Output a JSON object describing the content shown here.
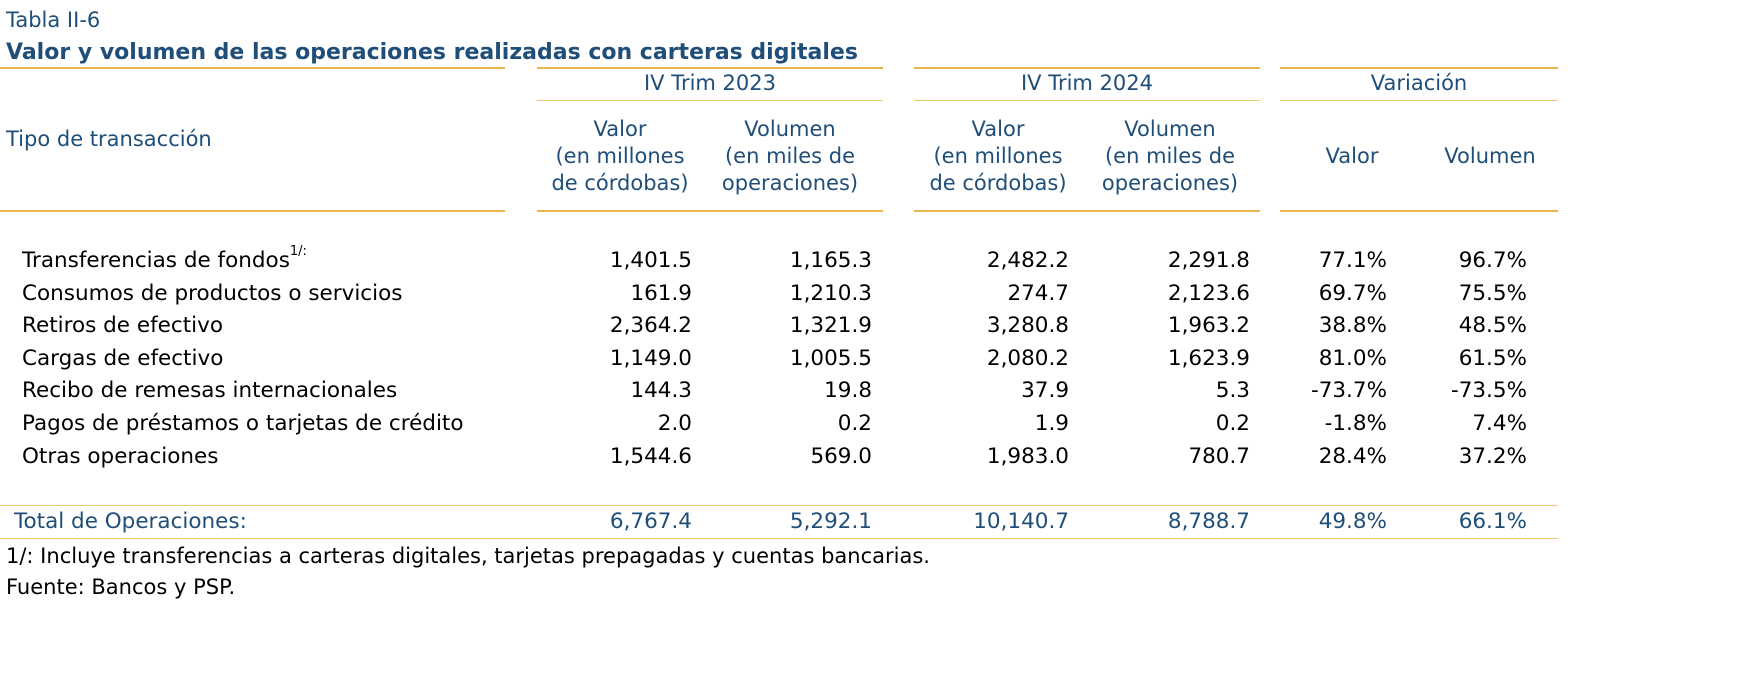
{
  "table": {
    "label": "Tabla II-6",
    "title": "Valor y volumen de las operaciones realizadas con carteras digitales",
    "row_header": "Tipo de transacción",
    "groups": [
      "IV Trim 2023",
      "IV Trim 2024",
      "Variación"
    ],
    "col_headers": {
      "valor_2023": [
        "Valor",
        "(en millones",
        "de córdobas)"
      ],
      "volumen_2023": [
        "Volumen",
        "(en miles de",
        "operaciones)"
      ],
      "valor_2024": [
        "Valor",
        "(en millones",
        "de córdobas)"
      ],
      "volumen_2024": [
        "Volumen",
        "(en miles de",
        "operaciones)"
      ],
      "var_valor": "Valor",
      "var_volumen": "Volumen"
    },
    "rows": [
      {
        "label": "Transferencias de fondos",
        "note": "1/:",
        "values": [
          "1,401.5",
          "1,165.3",
          "2,482.2",
          "2,291.8",
          "77.1%",
          "96.7%"
        ]
      },
      {
        "label": "Consumos de productos o servicios",
        "note": "",
        "values": [
          "161.9",
          "1,210.3",
          "274.7",
          "2,123.6",
          "69.7%",
          "75.5%"
        ]
      },
      {
        "label": "Retiros de efectivo",
        "note": "",
        "values": [
          "2,364.2",
          "1,321.9",
          "3,280.8",
          "1,963.2",
          "38.8%",
          "48.5%"
        ]
      },
      {
        "label": "Cargas de efectivo",
        "note": "",
        "values": [
          "1,149.0",
          "1,005.5",
          "2,080.2",
          "1,623.9",
          "81.0%",
          "61.5%"
        ]
      },
      {
        "label": "Recibo de remesas internacionales",
        "note": "",
        "values": [
          "144.3",
          "19.8",
          "37.9",
          "5.3",
          "-73.7%",
          "-73.5%"
        ]
      },
      {
        "label": "Pagos de préstamos o tarjetas de crédito",
        "note": "",
        "values": [
          "2.0",
          "0.2",
          "1.9",
          "0.2",
          "-1.8%",
          "7.4%"
        ]
      },
      {
        "label": "Otras operaciones",
        "note": "",
        "values": [
          "1,544.6",
          "569.0",
          "1,983.0",
          "780.7",
          "28.4%",
          "37.2%"
        ]
      }
    ],
    "total": {
      "label": "Total de Operaciones:",
      "values": [
        "6,767.4",
        "5,292.1",
        "10,140.7",
        "8,788.7",
        "49.8%",
        "66.1%"
      ]
    },
    "footnote": "1/: Incluye transferencias a carteras digitales, tarjetas prepagadas y cuentas bancarias.",
    "source": "Fuente: Bancos y PSP."
  },
  "colors": {
    "header_text": "#1F4E79",
    "rule": "#E8B64C"
  }
}
